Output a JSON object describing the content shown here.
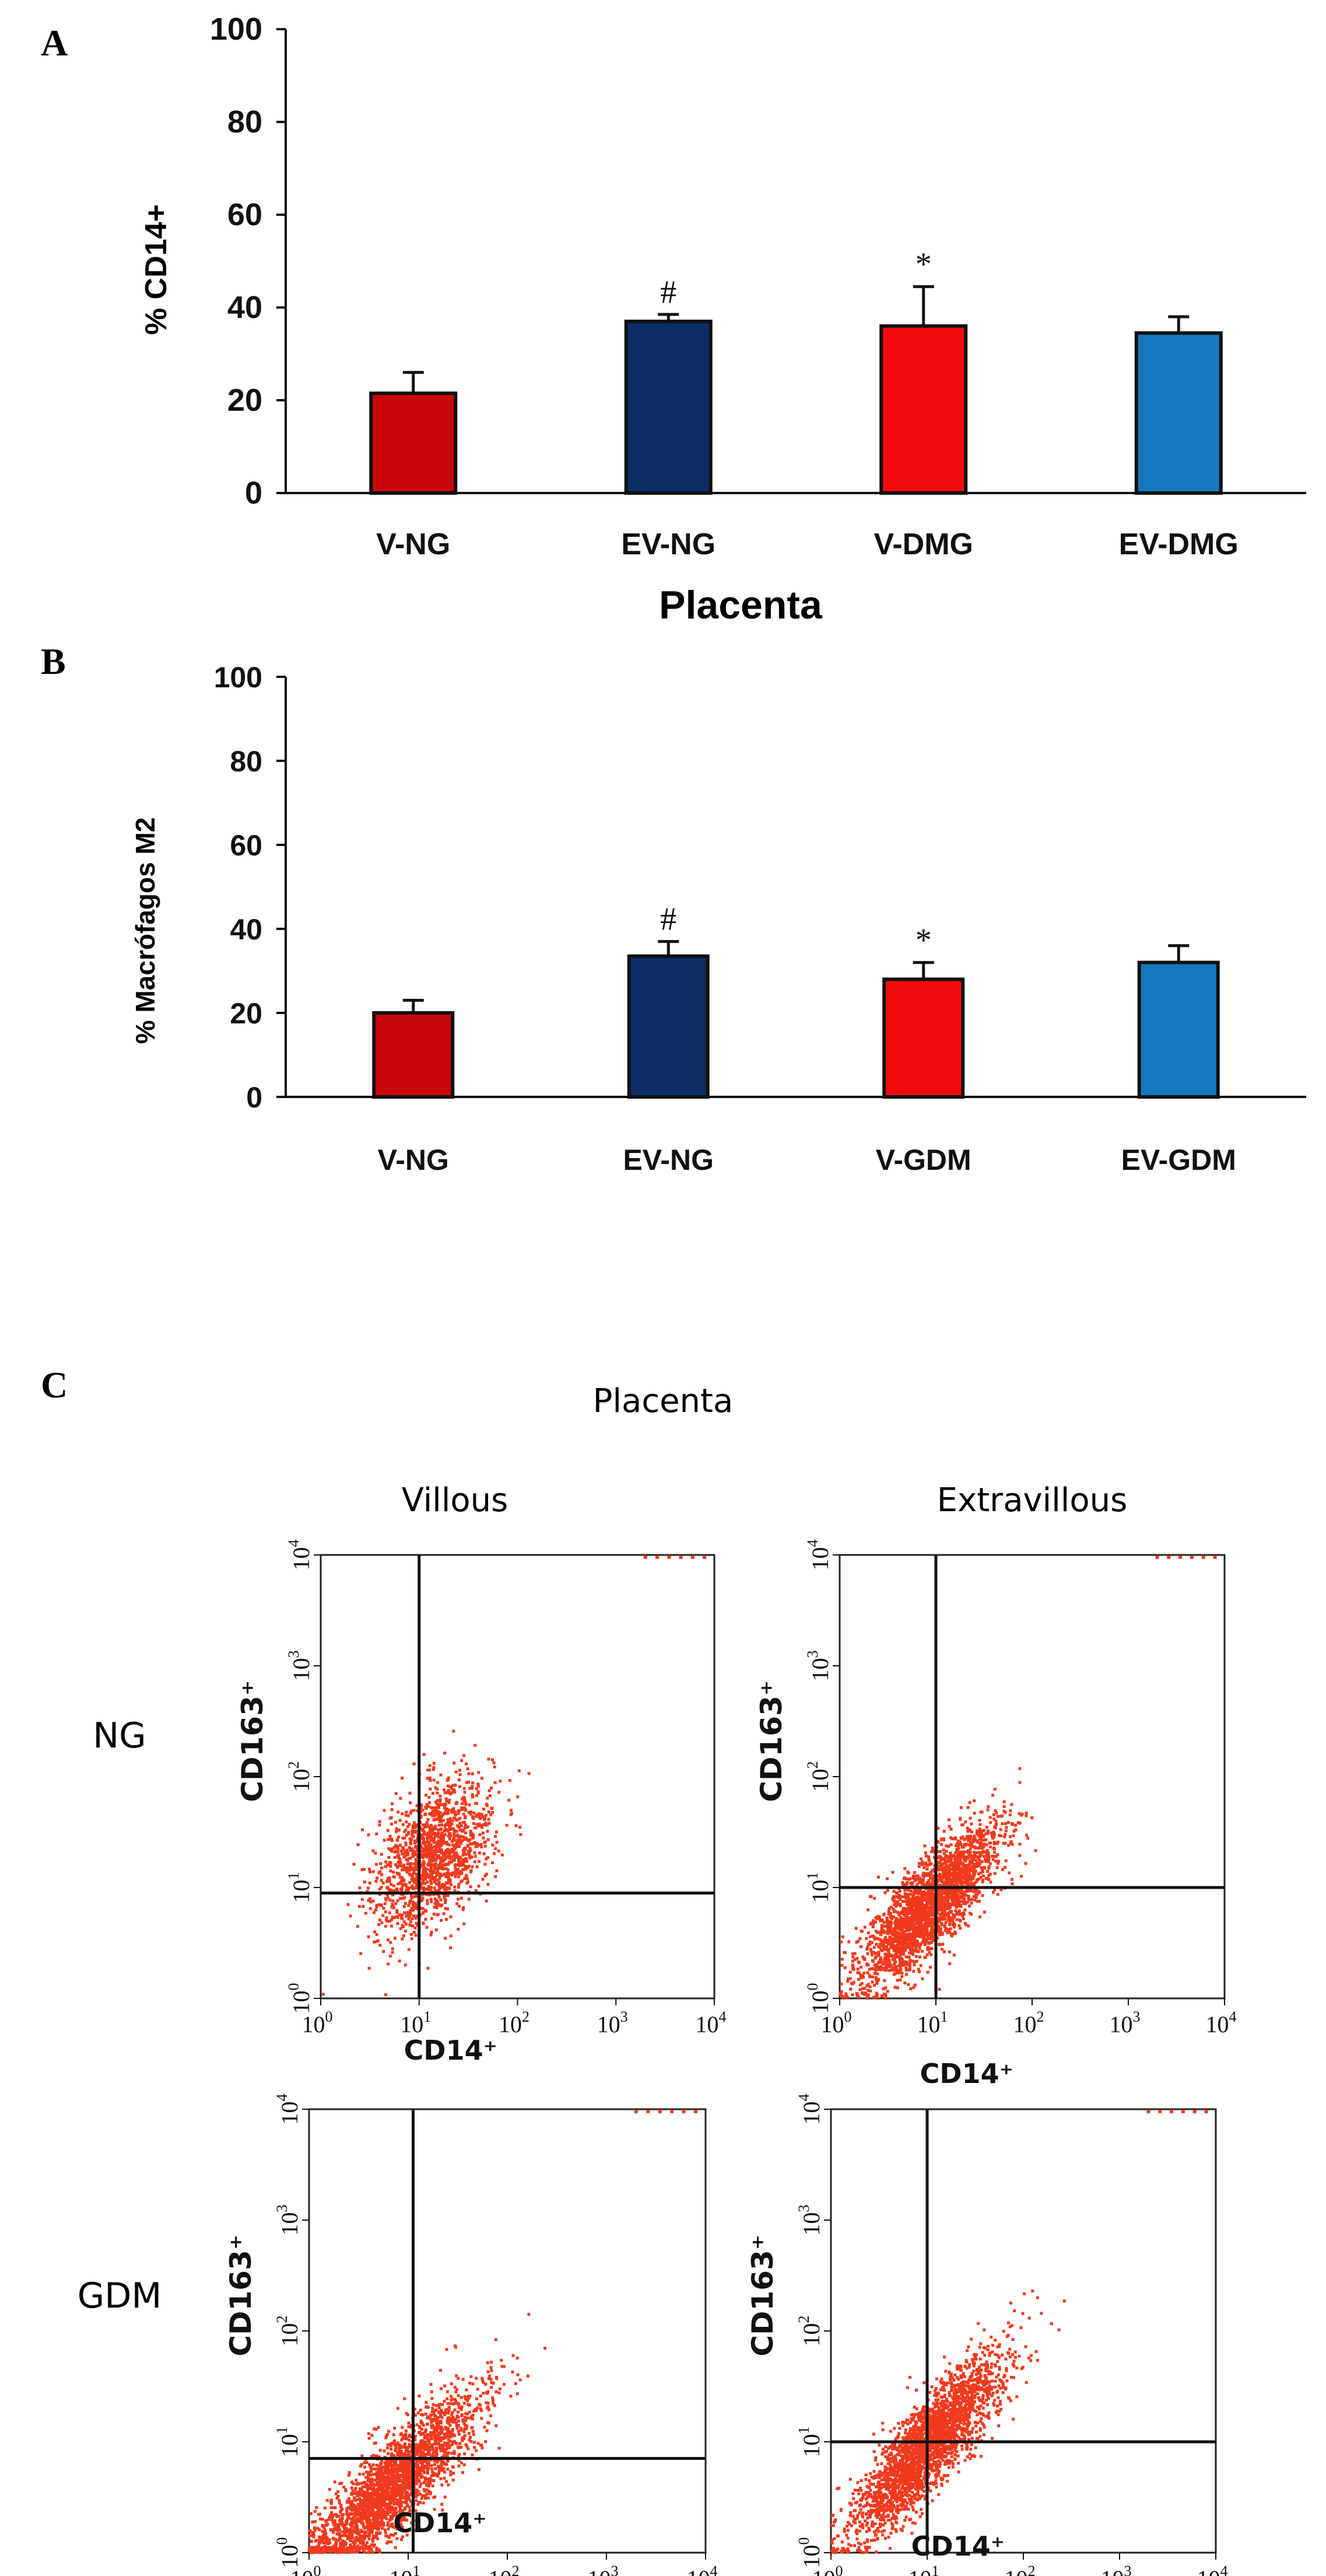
{
  "panel_labels": [
    "A",
    "B",
    "C"
  ],
  "chart_data": [
    {
      "type": "bar",
      "title": "",
      "xlabel": "Placenta",
      "ylabel": "% CD14+",
      "ylim": [
        0,
        100
      ],
      "yticks": [
        "0",
        "20",
        "40",
        "60",
        "80",
        "100"
      ],
      "categories": [
        "V-NG",
        "EV-NG",
        "V-DMG",
        "EV-DMG"
      ],
      "values": [
        21.5,
        37,
        36,
        34.5
      ],
      "errors": [
        4.5,
        1.5,
        8.5,
        3.5
      ],
      "colors": [
        "#c8080b",
        "#0c2f66",
        "#f40b10",
        "#1577bf"
      ],
      "annotations": [
        "",
        "#",
        "*",
        ""
      ]
    },
    {
      "type": "bar",
      "title": "",
      "xlabel": "",
      "ylabel": "% Macrófagos M2",
      "ylim": [
        0,
        100
      ],
      "yticks": [
        "0",
        "20",
        "40",
        "60",
        "80",
        "100"
      ],
      "categories": [
        "V-NG",
        "EV-NG",
        "V-GDM",
        "EV-GDM"
      ],
      "values": [
        20,
        33.5,
        28,
        32
      ],
      "errors": [
        3,
        3.5,
        4,
        4
      ],
      "colors": [
        "#c8080b",
        "#0c2f66",
        "#f40b10",
        "#1577bf"
      ],
      "annotations": [
        "",
        "#",
        "*",
        ""
      ]
    },
    {
      "type": "scatter",
      "title": "Placenta",
      "column_labels": [
        "Villous",
        "Extravillous"
      ],
      "row_labels": [
        "NG",
        "GDM"
      ],
      "xlabel": "CD14⁺",
      "ylabel": "CD163⁺",
      "scale": "log",
      "xlim": [
        1,
        10000
      ],
      "ylim": [
        1,
        10000
      ],
      "tick_exponents": [
        "0",
        "1",
        "2",
        "3",
        "4"
      ],
      "point_color": "#f03a1e",
      "plots": [
        {
          "name": "villous-ng",
          "center_log": [
            1.15,
            1.3
          ],
          "spread_log": [
            0.3,
            0.34
          ],
          "correlation": 0.45,
          "count": 1500,
          "gate_log": [
            1.0,
            0.95
          ]
        },
        {
          "name": "extravillous-ng",
          "center_log": [
            0.95,
            0.85
          ],
          "spread_log": [
            0.36,
            0.36
          ],
          "correlation": 0.8,
          "count": 2600,
          "gate_log": [
            1.0,
            1.0
          ]
        },
        {
          "name": "villous-gdm",
          "center_log": [
            0.85,
            0.6
          ],
          "spread_log": [
            0.42,
            0.4
          ],
          "correlation": 0.85,
          "count": 2600,
          "gate_log": [
            1.05,
            0.85
          ]
        },
        {
          "name": "extravillous-gdm",
          "center_log": [
            1.0,
            0.95
          ],
          "spread_log": [
            0.38,
            0.4
          ],
          "correlation": 0.85,
          "count": 2600,
          "gate_log": [
            1.0,
            1.0
          ]
        }
      ]
    }
  ]
}
